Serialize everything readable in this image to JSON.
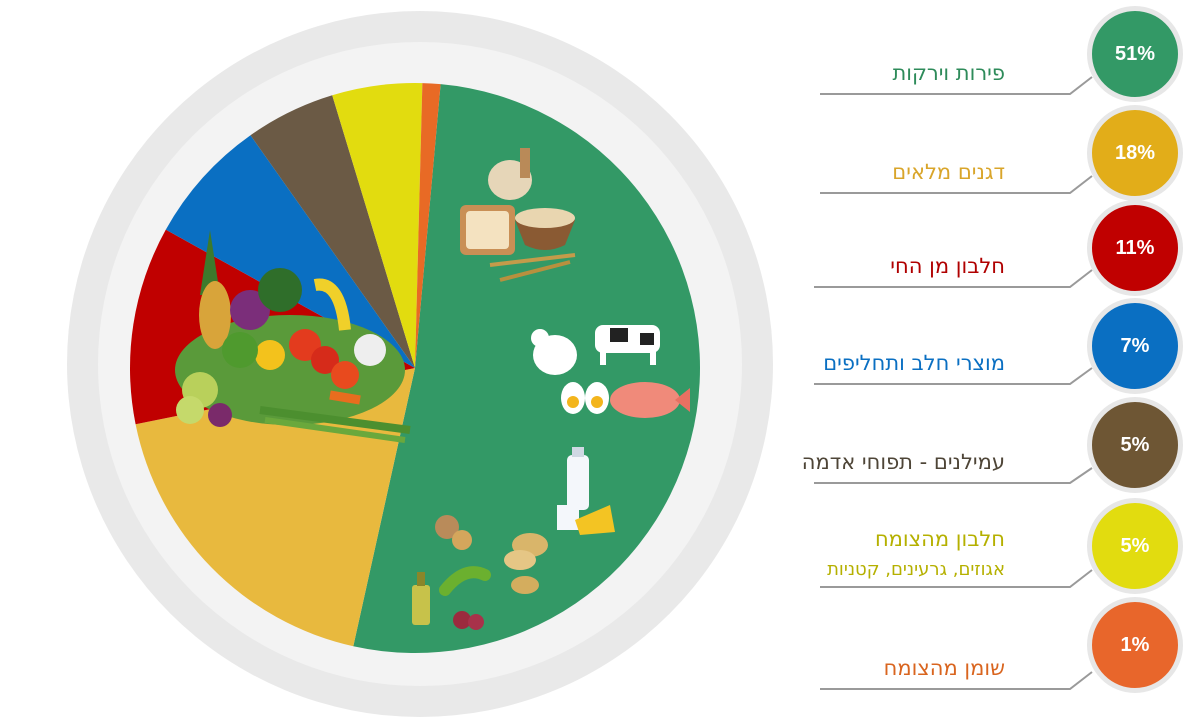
{
  "chart_data": {
    "type": "pie",
    "slices": [
      {
        "label": "פירות וירקות",
        "value": 51,
        "value_label": "51%",
        "color": "#339966",
        "icon": "fruits-vegetables-icon"
      },
      {
        "label": "דגנים מלאים",
        "value": 18,
        "value_label": "18%",
        "color": "#e8b93e",
        "icon": "grains-bread-icon"
      },
      {
        "label": "חלבון מן החי",
        "value": 11,
        "value_label": "11%",
        "color": "#c00000",
        "icon": "animal-protein-icon"
      },
      {
        "label": "מוצרי חלב ותחליפים",
        "value": 7,
        "value_label": "7%",
        "color": "#0a6fc2",
        "icon": "dairy-icon"
      },
      {
        "label": "עמילנים - תפוחי אדמה",
        "value": 5,
        "value_label": "5%",
        "color": "#6b5a45",
        "icon": "potato-icon"
      },
      {
        "label": "חלבון מהצומח",
        "sublabel": "אגוזים, גרעינים, קטניות",
        "value": 5,
        "value_label": "5%",
        "color": "#e2dc0f",
        "icon": "plant-protein-icon"
      },
      {
        "label": "שומן מהצומח",
        "value": 1,
        "value_label": "1%",
        "color": "#e86a25",
        "icon": "olive-oil-icon"
      }
    ],
    "label_colors": [
      "#2e8b5a",
      "#d9a52a",
      "#b00000",
      "#0a6fc2",
      "#4e4537",
      "#b5b000",
      "#d9651f"
    ],
    "badge_colors": [
      "#339966",
      "#e2ad19",
      "#c00000",
      "#0a6fc2",
      "#6e5634",
      "#e2dc0f",
      "#e8662b"
    ]
  }
}
